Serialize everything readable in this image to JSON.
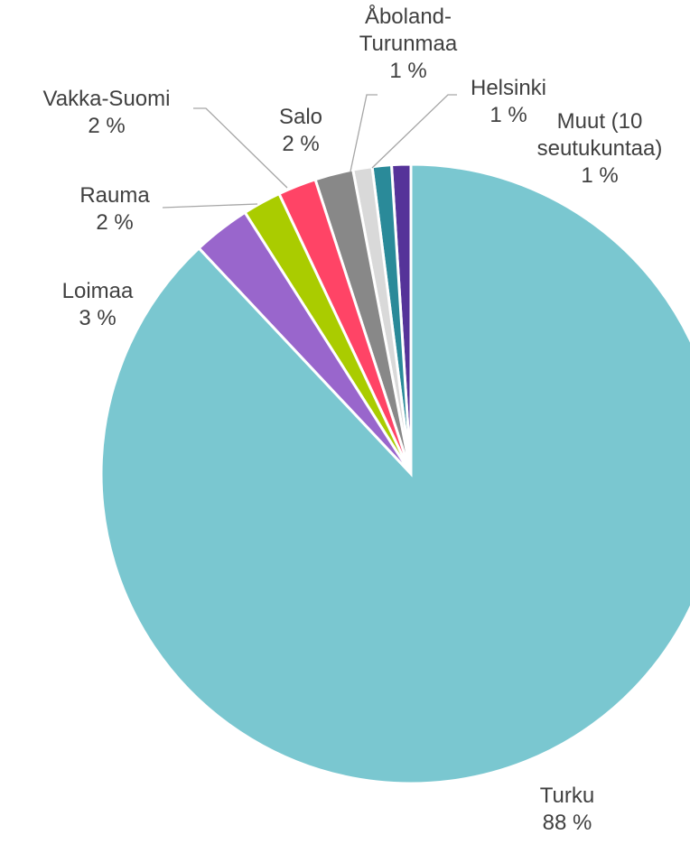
{
  "chart_data": {
    "type": "pie",
    "categories": [
      "Turku",
      "Loimaa",
      "Rauma",
      "Vakka-Suomi",
      "Salo",
      "Åboland-Turunmaa",
      "Helsinki",
      "Muut (10 seutukuntaa)"
    ],
    "values": [
      88,
      3,
      2,
      2,
      2,
      1,
      1,
      1
    ],
    "value_labels": [
      "88 %",
      "3 %",
      "2 %",
      "2 %",
      "2 %",
      "1 %",
      "1 %",
      "1 %"
    ],
    "colors": [
      "#7ac7d0",
      "#9966cc",
      "#aacc00",
      "#ff4466",
      "#888888",
      "#d9d9d9",
      "#2a8a99",
      "#553399"
    ]
  }
}
